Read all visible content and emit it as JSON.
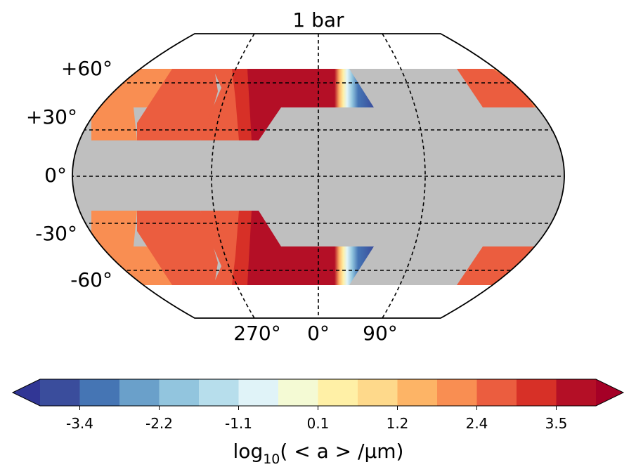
{
  "chart_data": {
    "type": "heatmap",
    "projection": "Robinson (global map)",
    "title": "1 bar",
    "latitude_labels": [
      "+60°",
      "+30°",
      "0°",
      "-30°",
      "-60°"
    ],
    "latitude_values": [
      60,
      30,
      0,
      -30,
      -60
    ],
    "longitude_labels": [
      "270°",
      "0°",
      "90°"
    ],
    "longitude_values": [
      -90,
      0,
      90
    ],
    "colorbar": {
      "label_prefix": "log",
      "label_subscript": "10",
      "label_suffix": "( < a > /μm)",
      "tick_labels": [
        "-3.4",
        "-2.2",
        "-1.1",
        "0.1",
        "1.2",
        "2.4",
        "3.5"
      ],
      "levels": 14,
      "extend": "both",
      "colors": [
        "#3a4d9c",
        "#4575b4",
        "#6aa0ca",
        "#92c5de",
        "#b7deec",
        "#e0f3f8",
        "#f4fad4",
        "#fff0a6",
        "#fed98b",
        "#fdb466",
        "#f98e52",
        "#eb5d3f",
        "#d73027",
        "#b40f26"
      ],
      "under_color": "#313695",
      "over_color": "#a50026"
    },
    "masked_color": "#bfbfbf",
    "fields": [
      {
        "region": "northern band, lat 30 to 60",
        "values": "≈2.4–3.5 over longitudes ~-180 to -10, rising to >3.5 near 0°, falling sharply to <-3.4 near lon 40–50°; ≈2.4 at lon 140–180; masked elsewhere"
      },
      {
        "region": "southern band, lat -30 to -60",
        "values": "mirror of northern band"
      },
      {
        "region": "equatorial band, lat -30 to 30",
        "values": "masked (no data)"
      }
    ]
  }
}
